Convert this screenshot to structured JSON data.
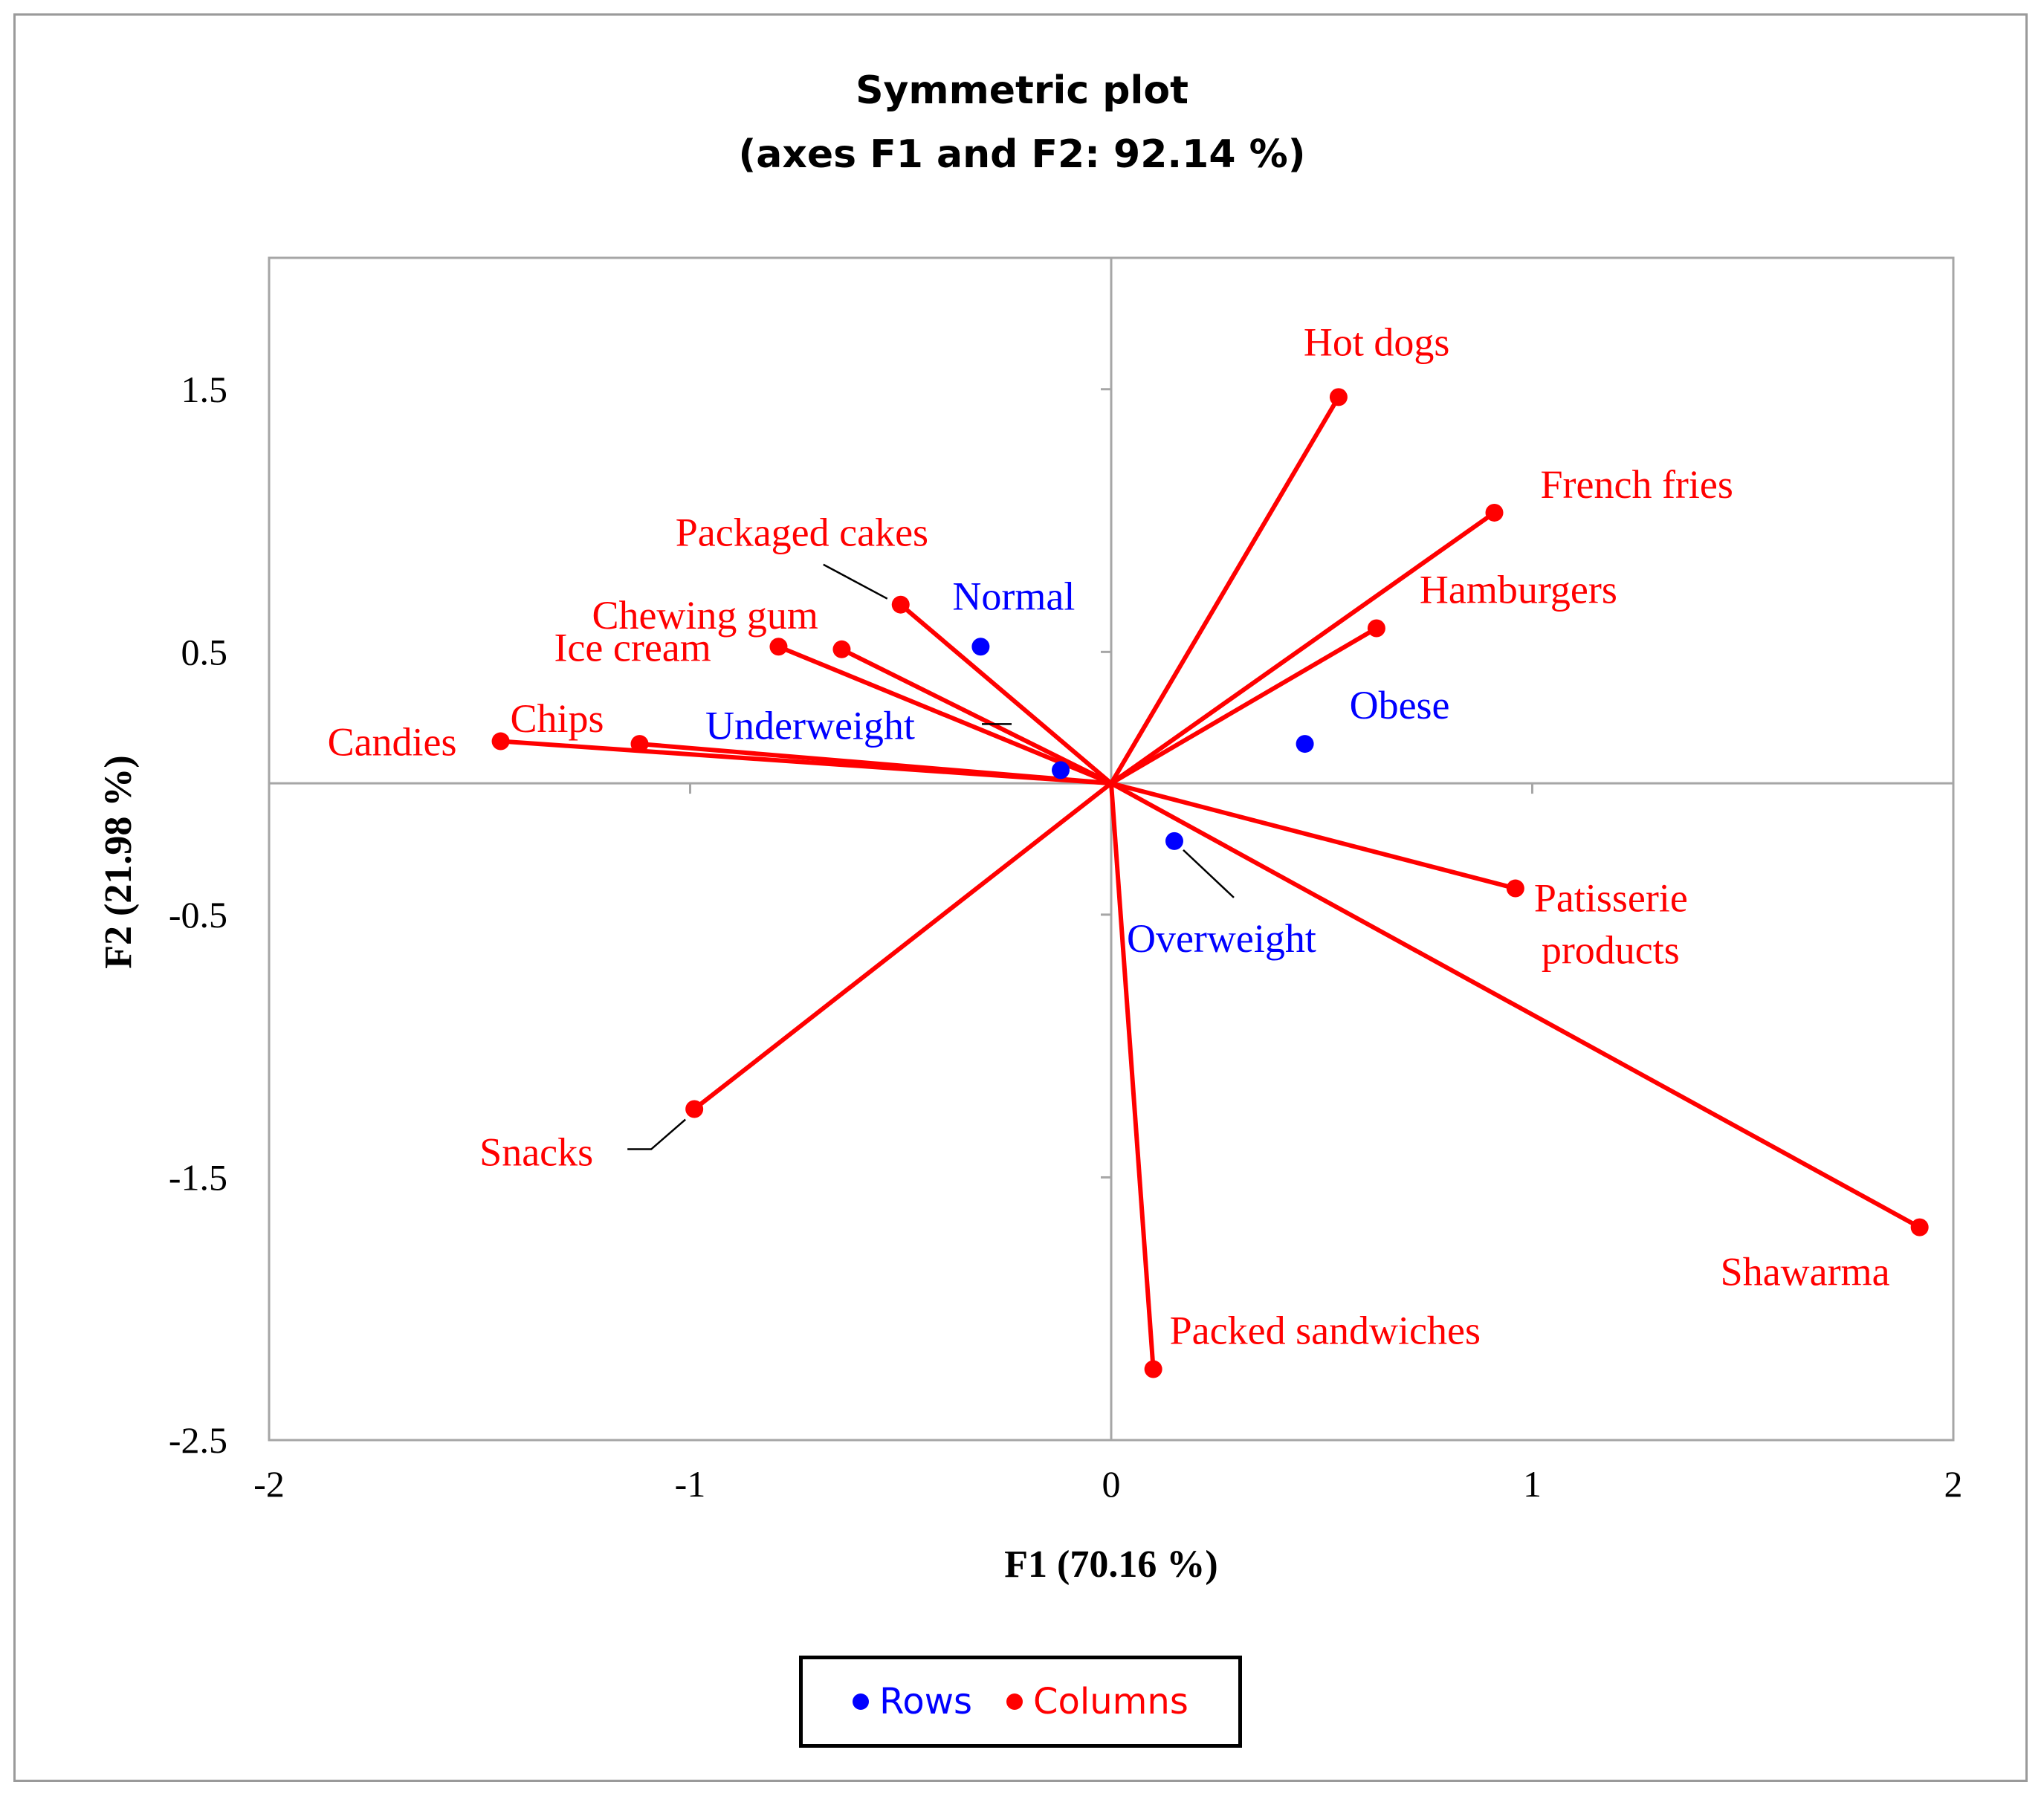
{
  "colors": {
    "rows": "#0000ff",
    "columns": "#ff0000",
    "axis": "#a6a6a6"
  },
  "chart_data": {
    "type": "scatter",
    "title": "Symmetric plot",
    "subtitle": "(axes F1 and F2: 92.14 %)",
    "xlabel": "F1 (70.16 %)",
    "ylabel": "F2 (21.98 %)",
    "xlim": [
      -2,
      2
    ],
    "ylim": [
      -2.5,
      2.0
    ],
    "x_ticks": [
      "-2",
      "-1",
      "0",
      "1",
      "2"
    ],
    "y_ticks": [
      "1.5",
      "0.5",
      "-0.5",
      "-1.5",
      "-2.5"
    ],
    "grid": false,
    "legend": {
      "position": "bottom",
      "entries": [
        "Rows",
        "Columns"
      ]
    },
    "series": [
      {
        "name": "Rows",
        "color": "#0000ff",
        "points": [
          {
            "label": "Normal",
            "x": -0.31,
            "y": 0.52
          },
          {
            "label": "Underweight",
            "x": -0.12,
            "y": 0.05
          },
          {
            "label": "Obese",
            "x": 0.46,
            "y": 0.15
          },
          {
            "label": "Overweight",
            "x": 0.15,
            "y": -0.22
          }
        ]
      },
      {
        "name": "Columns",
        "color": "#ff0000",
        "points": [
          {
            "label": "Hot dogs",
            "x": 0.54,
            "y": 1.47
          },
          {
            "label": "French fries",
            "x": 0.91,
            "y": 1.03
          },
          {
            "label": "Hamburgers",
            "x": 0.63,
            "y": 0.59
          },
          {
            "label": "Packaged cakes",
            "x": -0.5,
            "y": 0.68
          },
          {
            "label": "Chewing gum",
            "x": -0.64,
            "y": 0.51
          },
          {
            "label": "Ice cream",
            "x": -0.79,
            "y": 0.52
          },
          {
            "label": "Chips",
            "x": -1.12,
            "y": 0.15
          },
          {
            "label": "Candies",
            "x": -1.45,
            "y": 0.16
          },
          {
            "label": "Patisserie products",
            "x": 0.96,
            "y": -0.4
          },
          {
            "label": "Snacks",
            "x": -0.99,
            "y": -1.24
          },
          {
            "label": "Packed sandwiches",
            "x": 0.1,
            "y": -2.23
          },
          {
            "label": "Shawarma",
            "x": 1.92,
            "y": -1.69
          }
        ]
      }
    ]
  }
}
